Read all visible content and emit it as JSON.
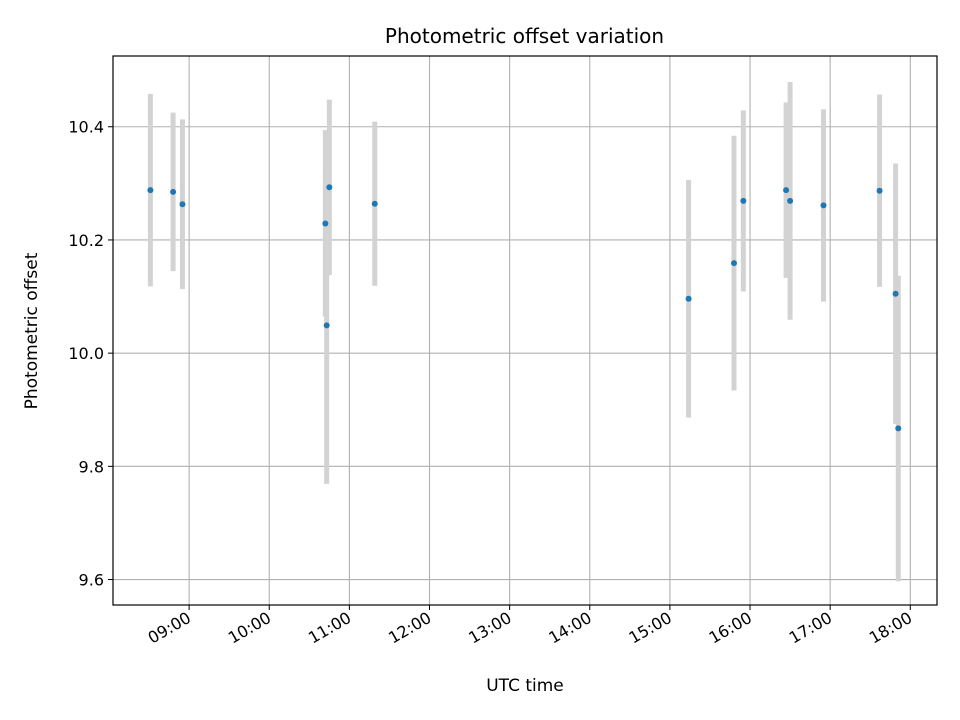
{
  "chart_data": {
    "type": "scatter",
    "title": "Photometric offset variation",
    "xlabel": "UTC time",
    "ylabel": "Photometric offset",
    "x_axis": "time",
    "xlim": [
      "08:03",
      "18:20"
    ],
    "ylim": [
      9.555,
      10.525
    ],
    "xticks": [
      "09:00",
      "10:00",
      "11:00",
      "12:00",
      "13:00",
      "14:00",
      "15:00",
      "16:00",
      "17:00",
      "18:00"
    ],
    "yticks": [
      9.6,
      9.8,
      10.0,
      10.2,
      10.4
    ],
    "grid": true,
    "colors": {
      "point": "#1f77b4",
      "errorbar": "#d3d3d3",
      "grid": "#b0b0b0"
    },
    "points": [
      {
        "x": "08:31",
        "y": 10.288,
        "err": 0.17
      },
      {
        "x": "08:48",
        "y": 10.285,
        "err": 0.14
      },
      {
        "x": "08:55",
        "y": 10.263,
        "err": 0.15
      },
      {
        "x": "10:42",
        "y": 10.229,
        "err": 0.165
      },
      {
        "x": "10:43",
        "y": 10.049,
        "err": 0.28
      },
      {
        "x": "10:45",
        "y": 10.293,
        "err": 0.155
      },
      {
        "x": "11:19",
        "y": 10.264,
        "err": 0.145
      },
      {
        "x": "15:14",
        "y": 10.096,
        "err": 0.21
      },
      {
        "x": "15:48",
        "y": 10.159,
        "err": 0.225
      },
      {
        "x": "15:55",
        "y": 10.269,
        "err": 0.16
      },
      {
        "x": "16:27",
        "y": 10.288,
        "err": 0.155
      },
      {
        "x": "16:30",
        "y": 10.269,
        "err": 0.21
      },
      {
        "x": "16:55",
        "y": 10.261,
        "err": 0.17
      },
      {
        "x": "17:37",
        "y": 10.287,
        "err": 0.17
      },
      {
        "x": "17:49",
        "y": 10.105,
        "err": 0.23
      },
      {
        "x": "17:51",
        "y": 9.867,
        "err": 0.27
      }
    ]
  }
}
